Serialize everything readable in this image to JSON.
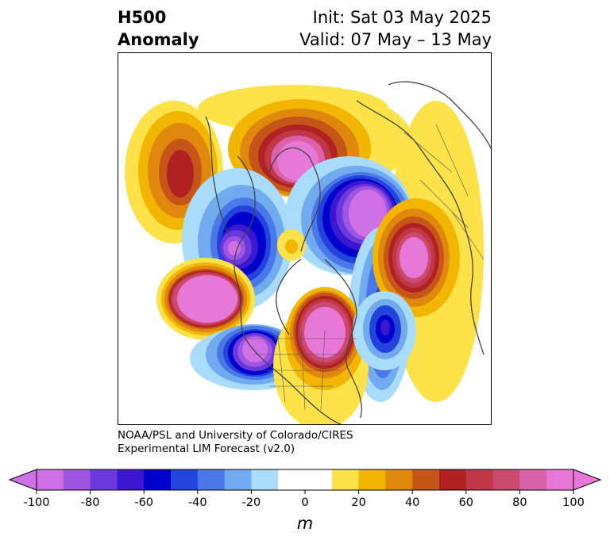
{
  "header": {
    "title_line1": "H500",
    "title_line2": "Anomaly",
    "init_label": "Init: Sat 03 May 2025",
    "valid_label": "Valid: 07 May – 13 May"
  },
  "credit": {
    "line1": "NOAA/PSL and University of Colorado/CIRES",
    "line2": "Experimental LIM Forecast (v2.0)"
  },
  "colorbar": {
    "unit": "m",
    "tick_labels": [
      "-100",
      "-80",
      "-60",
      "-40",
      "-20",
      "0",
      "20",
      "40",
      "60",
      "80",
      "100"
    ],
    "colors": [
      "#d070e6",
      "#a055e0",
      "#6a38dc",
      "#3b18d0",
      "#0000cc",
      "#2244dd",
      "#4a78e8",
      "#72aaf0",
      "#a9dcfb",
      "#ffffff",
      "#ffffff",
      "#fde24a",
      "#f2b500",
      "#e0870e",
      "#c55518",
      "#b02222",
      "#c03848",
      "#cc4a70",
      "#da62aa",
      "#e878d8"
    ],
    "extend_low_color": "#d070e6",
    "extend_high_color": "#e878d8"
  },
  "map": {
    "projection": "polar stereographic (North Pole)",
    "field": "500 hPa geopotential height anomaly (m)"
  }
}
